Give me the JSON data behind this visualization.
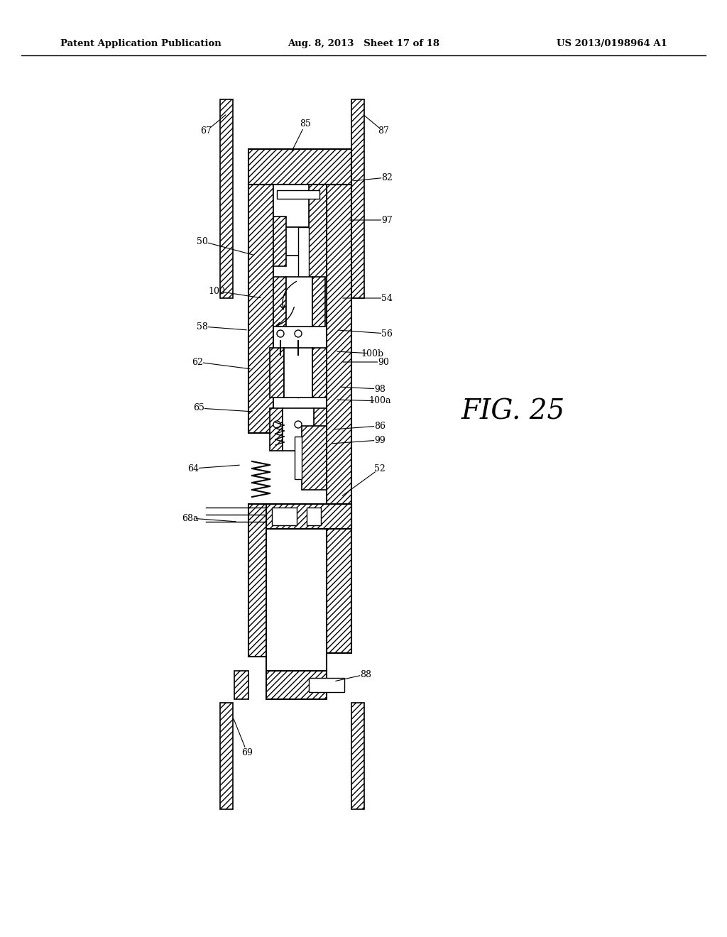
{
  "title_left": "Patent Application Publication",
  "title_mid": "Aug. 8, 2013   Sheet 17 of 18",
  "title_right": "US 2013/0198964 A1",
  "fig_label": "FIG. 25",
  "bg_color": "#ffffff"
}
